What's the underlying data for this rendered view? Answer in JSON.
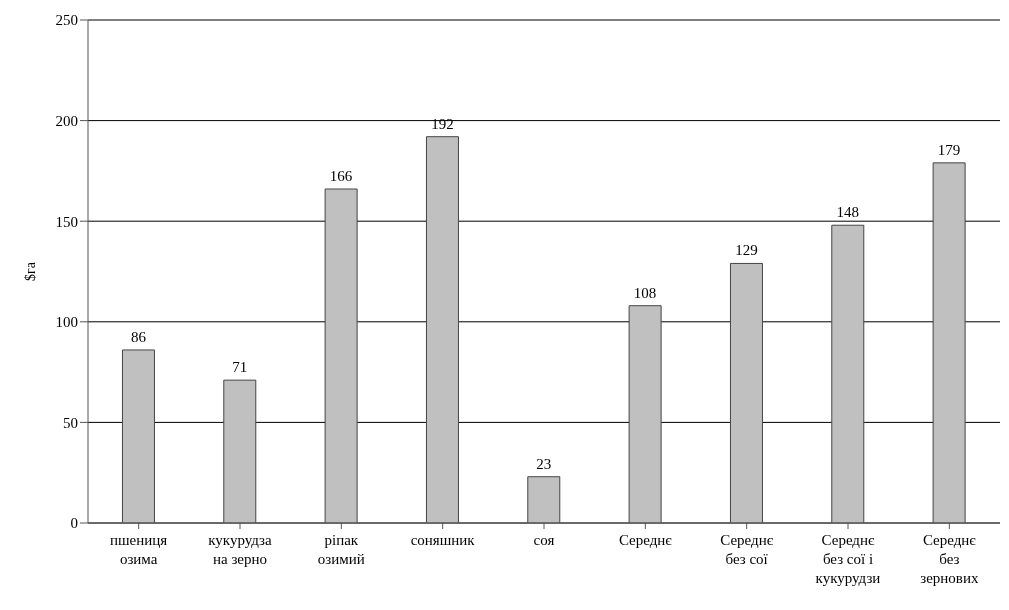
{
  "chart_data": {
    "type": "bar",
    "ylabel": "$га",
    "categories": [
      "пшениця озима",
      "кукурудза на зерно",
      "ріпак озимий",
      "соняшник",
      "соя",
      "Середнє",
      "Середнє без сої",
      "Середнє без сої і кукурудзи",
      "Середнє без зернових"
    ],
    "values": [
      86,
      71,
      166,
      192,
      23,
      108,
      129,
      148,
      179
    ],
    "color": "#c0c0c0",
    "ylim": [
      0,
      250
    ],
    "yticks": [
      0,
      50,
      100,
      150,
      200,
      250
    ],
    "grid": "y",
    "data_labels": true
  }
}
